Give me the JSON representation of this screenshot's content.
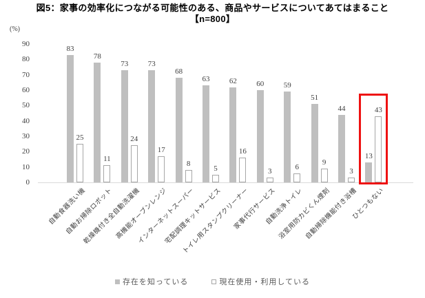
{
  "title": {
    "line1": "図5：家事の効率化につながる可能性のある、商品やサービスについてあてはまること",
    "line2": "【n=800】"
  },
  "chart_data": {
    "type": "bar",
    "title": "図5：家事の効率化につながる可能性のある、商品やサービスについてあてはまること【n=800】",
    "unit_label": "(%)",
    "categories": [
      "自動食器洗い機",
      "自動お掃除ロボット",
      "乾燥機付き全自動洗濯機",
      "高機能オーブンレンジ",
      "インターネットスーパー",
      "宅配調理キットサービス",
      "トイレ用スタンプクリーナー",
      "家事代行サービス",
      "自動洗浄トイレ",
      "浴室用防カビくん煙剤",
      "自動掃除機能付き浴槽",
      "ひとつもない"
    ],
    "series": [
      {
        "name": "存在を知っている",
        "style": "filled",
        "values": [
          83,
          78,
          73,
          73,
          68,
          63,
          62,
          60,
          59,
          51,
          44,
          13
        ]
      },
      {
        "name": "現在使用・利用している",
        "style": "outlined",
        "values": [
          25,
          11,
          24,
          17,
          8,
          5,
          16,
          3,
          6,
          9,
          3,
          43
        ]
      }
    ],
    "ylim": [
      0,
      90
    ],
    "ytick_step": 10,
    "grid": false,
    "legend_position": "bottom",
    "highlight": {
      "category_index": 11,
      "category": "ひとつもない"
    }
  },
  "legend": {
    "items": [
      {
        "label": "存在を知っている",
        "swatch": "filled"
      },
      {
        "label": "現在使用・利用している",
        "swatch": "outlined"
      }
    ]
  },
  "colors": {
    "bar_fill": "#bfbfbf",
    "bar_outline": "#a6a6a6",
    "axis_line": "#d9d9d9",
    "text": "#404040",
    "legend_text": "#595959",
    "highlight_box": "#ee1111"
  }
}
